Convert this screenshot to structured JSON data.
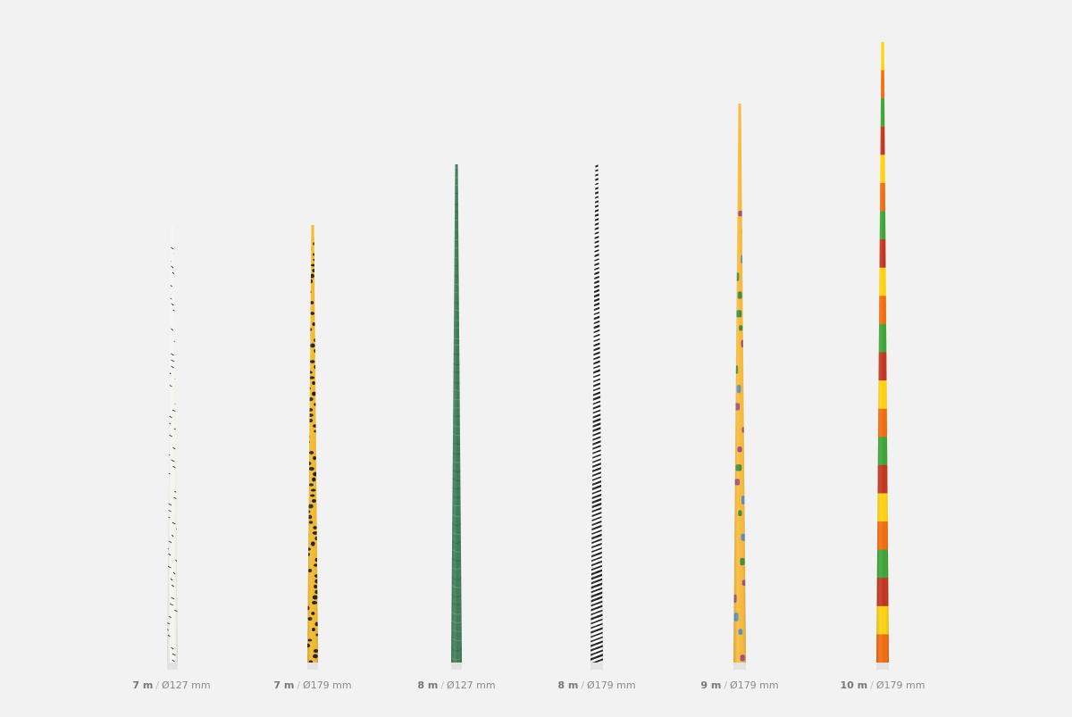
{
  "background_color": "#f2f2f2",
  "poles": [
    {
      "length": "7 m",
      "separator": "/",
      "diameter": "Ø127 mm",
      "pattern": "white-with-black-marks",
      "colors": [
        "#f4f4f1",
        "#2b2b2b"
      ]
    },
    {
      "length": "7 m",
      "separator": "/",
      "diameter": "Ø179 mm",
      "pattern": "leopard-spots",
      "colors": [
        "#f3b82a",
        "#1e1e1e"
      ]
    },
    {
      "length": "8 m",
      "separator": "/",
      "diameter": "Ø127 mm",
      "pattern": "green-marble",
      "colors": [
        "#3c7a55",
        "#2a5e40",
        "#6aa07e"
      ]
    },
    {
      "length": "8 m",
      "separator": "/",
      "diameter": "Ø179 mm",
      "pattern": "zebra-stripes",
      "colors": [
        "#ffffff",
        "#1a1a1a"
      ]
    },
    {
      "length": "9 m",
      "separator": "/",
      "diameter": "Ø179 mm",
      "pattern": "cactus-motifs",
      "colors": [
        "#f7b93a",
        "#3e8a3e",
        "#5b8fb9",
        "#9a4f7d"
      ]
    },
    {
      "length": "10 m",
      "separator": "/",
      "diameter": "Ø179 mm",
      "pattern": "colour-bands",
      "colors": [
        "#ffd10d",
        "#f26a0c",
        "#3aa335",
        "#c0321d"
      ]
    }
  ]
}
